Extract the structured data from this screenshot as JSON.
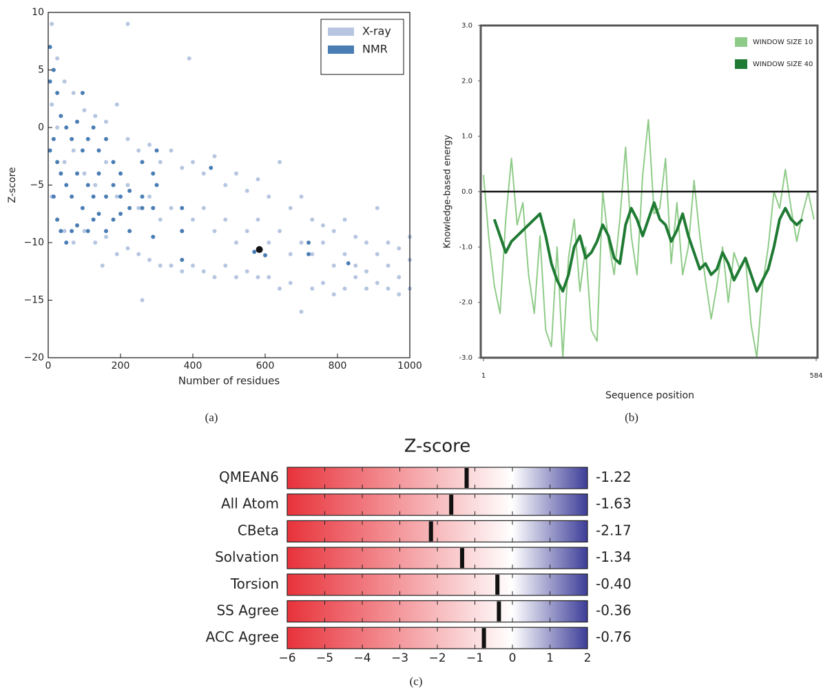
{
  "chart_data": [
    {
      "type": "scatter",
      "caption": "(a)",
      "xlabel": "Number of residues",
      "ylabel": "Z-score",
      "xlim": [
        0,
        1000
      ],
      "xticks": [
        0,
        200,
        400,
        600,
        800,
        1000
      ],
      "ylim": [
        -20,
        10
      ],
      "yticks": [
        {
          "value": -20,
          "label": "−20"
        },
        {
          "value": -15,
          "label": "−15"
        },
        {
          "value": -10,
          "label": "−10"
        },
        {
          "value": -5,
          "label": "−5"
        },
        0,
        5,
        10
      ],
      "legend": "upper right",
      "series": [
        {
          "name": "X-ray",
          "color": "#b6c6e1",
          "x": [
            10,
            10,
            10,
            25,
            25,
            25,
            45,
            45,
            45,
            70,
            70,
            70,
            100,
            100,
            100,
            130,
            130,
            130,
            160,
            160,
            160,
            190,
            190,
            190,
            220,
            220,
            220,
            250,
            250,
            250,
            280,
            280,
            280,
            310,
            310,
            310,
            340,
            340,
            340,
            370,
            370,
            370,
            400,
            400,
            400,
            430,
            430,
            430,
            460,
            460,
            460,
            490,
            490,
            490,
            520,
            520,
            520,
            550,
            550,
            550,
            580,
            580,
            580,
            610,
            610,
            610,
            640,
            640,
            640,
            670,
            670,
            670,
            700,
            700,
            700,
            730,
            730,
            730,
            760,
            760,
            760,
            790,
            790,
            790,
            820,
            820,
            820,
            850,
            850,
            850,
            880,
            880,
            880,
            910,
            910,
            910,
            940,
            940,
            940,
            970,
            970,
            970,
            1000,
            1000,
            1000,
            220,
            390,
            150,
            260
          ],
          "values": [
            9,
            2,
            -6,
            6,
            0,
            -8,
            4,
            -3,
            -9,
            3,
            -2,
            -10,
            1.5,
            -4,
            -9,
            1,
            -5,
            -10,
            0.5,
            -3,
            -9.5,
            2,
            -6,
            -11,
            -1,
            -5,
            -10.5,
            -2,
            -7,
            -11,
            -1.5,
            -6,
            -11.5,
            -3,
            -8,
            -12,
            -2,
            -7,
            -12,
            -3.5,
            -9,
            -12.5,
            -3,
            -8,
            -12,
            -4,
            -7,
            -12.5,
            -2.5,
            -9,
            -13,
            -5,
            -8,
            -12,
            -4,
            -10,
            -13,
            -5.5,
            -9,
            -12.5,
            -4.5,
            -8,
            -13,
            -6,
            -10,
            -13,
            -3,
            -9,
            -14,
            -7,
            -11,
            -13.5,
            -6,
            -10,
            -16,
            -8,
            -11,
            -14,
            -8.5,
            -10,
            -13.5,
            -9,
            -12,
            -14.5,
            -8,
            -11,
            -14,
            -9.5,
            -12,
            -13,
            -10,
            -12.5,
            -14,
            -7,
            -11,
            -13.5,
            -10,
            -12,
            -14,
            -10.5,
            -13,
            -14.5,
            -9.5,
            -11.5,
            -14,
            9,
            6,
            -12,
            -15
          ]
        },
        {
          "name": "NMR",
          "color": "#4a7db4",
          "x": [
            5,
            5,
            5,
            15,
            15,
            15,
            25,
            25,
            25,
            35,
            35,
            35,
            50,
            50,
            50,
            65,
            65,
            65,
            80,
            80,
            80,
            95,
            95,
            95,
            110,
            110,
            110,
            125,
            125,
            125,
            140,
            140,
            140,
            160,
            160,
            160,
            180,
            180,
            180,
            200,
            200,
            200,
            225,
            225,
            225,
            260,
            260,
            260,
            290,
            290,
            290,
            300,
            300,
            370,
            370,
            370,
            450,
            570,
            600,
            720,
            720,
            830
          ],
          "values": [
            7,
            4,
            -2,
            5,
            -1,
            -6,
            3,
            -3,
            -8,
            1,
            -4,
            -9,
            0,
            -5,
            -10,
            -1,
            -6,
            -9,
            0.5,
            -4,
            -8.5,
            3,
            -2,
            -7,
            -1,
            -5,
            -9,
            0,
            -6,
            -8,
            -2,
            -4,
            -7.5,
            -1,
            -6,
            -9,
            -3,
            -5,
            -8,
            -4,
            -6,
            -7.5,
            -5.5,
            -7,
            -9,
            -3,
            -6,
            -7,
            -4,
            -7,
            -9.5,
            -2,
            -5,
            -7,
            -9,
            -11.5,
            -3.5,
            -10.8,
            -11.1,
            -10,
            -11,
            -11.8
          ]
        }
      ],
      "marker": {
        "x": 584,
        "y": -10.6,
        "color": "#111111"
      }
    },
    {
      "type": "line",
      "caption": "(b)",
      "xlabel": "Sequence position",
      "ylabel": "Knowledge-based energy",
      "xlim": [
        1,
        584
      ],
      "xticks": [
        1,
        584
      ],
      "ylim": [
        -3,
        3
      ],
      "yticks": [
        {
          "value": -3,
          "label": "-3.0"
        },
        {
          "value": -2,
          "label": "-2.0"
        },
        {
          "value": -1,
          "label": "-1.0"
        },
        {
          "value": 0,
          "label": "0.0"
        },
        {
          "value": 1,
          "label": "1.0"
        },
        {
          "value": 2,
          "label": "2.0"
        },
        {
          "value": 3,
          "label": "3.0"
        }
      ],
      "reference_line": 0,
      "legend": "upper right",
      "series": [
        {
          "name": "WINDOW SIZE 10",
          "color": "#8fcb88",
          "x": [
            1,
            10,
            20,
            30,
            40,
            50,
            60,
            70,
            80,
            90,
            100,
            110,
            120,
            130,
            140,
            150,
            160,
            170,
            180,
            190,
            200,
            210,
            220,
            230,
            240,
            250,
            260,
            270,
            280,
            290,
            300,
            310,
            320,
            330,
            340,
            350,
            360,
            370,
            380,
            390,
            400,
            410,
            420,
            430,
            440,
            450,
            460,
            470,
            480,
            490,
            500,
            510,
            520,
            530,
            540,
            550,
            560,
            570,
            580
          ],
          "values": [
            0.3,
            -0.8,
            -1.7,
            -2.2,
            -0.5,
            0.6,
            -0.6,
            -0.2,
            -1.5,
            -2.2,
            -0.8,
            -2.5,
            -2.8,
            -1.0,
            -3.0,
            -1.2,
            -0.5,
            -1.8,
            -1.0,
            -2.5,
            -2.7,
            0.0,
            -0.9,
            -1.5,
            -0.5,
            0.8,
            -0.8,
            -1.5,
            0.3,
            1.3,
            -0.4,
            -0.3,
            0.6,
            -1.3,
            -0.2,
            -1.5,
            -1.0,
            0.2,
            -0.8,
            -1.6,
            -2.3,
            -1.7,
            -1.0,
            -2.0,
            -1.1,
            -1.4,
            -1.2,
            -2.4,
            -3.0,
            -1.7,
            -1.0,
            0.0,
            -0.3,
            0.4,
            -0.3,
            -0.9,
            -0.4,
            0.0,
            -0.5
          ]
        },
        {
          "name": "WINDOW SIZE 40",
          "color": "#1f7a33",
          "x": [
            20,
            30,
            40,
            50,
            60,
            70,
            80,
            90,
            100,
            110,
            120,
            130,
            140,
            150,
            160,
            170,
            180,
            190,
            200,
            210,
            220,
            230,
            240,
            250,
            260,
            270,
            280,
            290,
            300,
            310,
            320,
            330,
            340,
            350,
            360,
            370,
            380,
            390,
            400,
            410,
            420,
            430,
            440,
            450,
            460,
            470,
            480,
            490,
            500,
            510,
            520,
            530,
            540,
            550,
            560
          ],
          "values": [
            -0.5,
            -0.8,
            -1.1,
            -0.9,
            -0.8,
            -0.7,
            -0.6,
            -0.5,
            -0.4,
            -0.8,
            -1.3,
            -1.6,
            -1.8,
            -1.5,
            -1.0,
            -0.8,
            -1.2,
            -1.1,
            -0.9,
            -0.6,
            -0.8,
            -1.2,
            -1.3,
            -0.6,
            -0.3,
            -0.5,
            -0.8,
            -0.5,
            -0.2,
            -0.5,
            -0.6,
            -0.9,
            -0.7,
            -0.4,
            -0.8,
            -1.1,
            -1.4,
            -1.3,
            -1.5,
            -1.4,
            -1.1,
            -1.3,
            -1.6,
            -1.4,
            -1.2,
            -1.5,
            -1.8,
            -1.6,
            -1.4,
            -1.0,
            -0.5,
            -0.3,
            -0.5,
            -0.6,
            -0.5
          ]
        }
      ]
    },
    {
      "type": "bar",
      "orientation": "horizontal",
      "title": "Z-score",
      "caption": "(c)",
      "categories": [
        "QMEAN6",
        "All Atom",
        "CBeta",
        "Solvation",
        "Torsion",
        "SS Agree",
        "ACC Agree"
      ],
      "values": [
        -1.22,
        -1.63,
        -2.17,
        -1.34,
        -0.4,
        -0.36,
        -0.76
      ],
      "value_labels": [
        "-1.22",
        "-1.63",
        "-2.17",
        "-1.34",
        "-0.40",
        "-0.36",
        "-0.76"
      ],
      "xlim": [
        -6,
        2
      ],
      "xticks": [
        {
          "value": -6,
          "label": "−6"
        },
        {
          "value": -5,
          "label": "−5"
        },
        {
          "value": -4,
          "label": "−4"
        },
        {
          "value": -3,
          "label": "−3"
        },
        {
          "value": -2,
          "label": "−2"
        },
        {
          "value": -1,
          "label": "−1"
        },
        0,
        1,
        2
      ],
      "colormap": [
        "#e8323a",
        "#ffffff",
        "#3d3d99"
      ],
      "color": "#111111"
    }
  ]
}
